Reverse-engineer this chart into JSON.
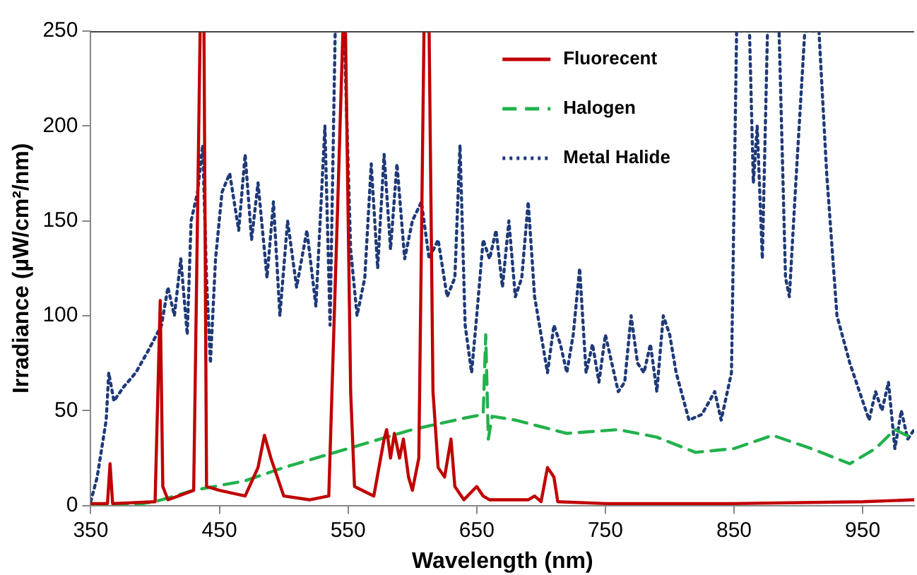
{
  "chart_data": {
    "type": "line",
    "xlabel": "Wavelength (nm)",
    "ylabel": "Irradiance (µW/cm²/nm)",
    "xlim": [
      350,
      990
    ],
    "ylim": [
      0,
      250
    ],
    "xticks": [
      350,
      450,
      550,
      650,
      750,
      850,
      950
    ],
    "yticks": [
      0,
      50,
      100,
      150,
      200,
      250
    ],
    "grid": false,
    "legend": "top",
    "marker": "none",
    "series": [
      {
        "name": "Fluorecent",
        "color": "#c00000",
        "line_style": "solid",
        "x": [
          350,
          363,
          365,
          367,
          400,
          404,
          406,
          410,
          430,
          435,
          438,
          440,
          450,
          470,
          480,
          485,
          490,
          500,
          520,
          535,
          542,
          546,
          548,
          552,
          555,
          570,
          578,
          580,
          583,
          586,
          590,
          593,
          597,
          600,
          605,
          609,
          613,
          616,
          620,
          625,
          630,
          633,
          640,
          650,
          655,
          660,
          690,
          695,
          700,
          705,
          710,
          713,
          750,
          850,
          950,
          990
        ],
        "values": [
          1,
          1,
          22,
          1,
          2,
          108,
          10,
          3,
          8,
          250,
          250,
          10,
          8,
          5,
          20,
          37,
          25,
          5,
          3,
          5,
          160,
          250,
          250,
          60,
          10,
          5,
          35,
          40,
          25,
          38,
          25,
          35,
          15,
          8,
          25,
          250,
          250,
          60,
          20,
          15,
          35,
          10,
          3,
          10,
          5,
          3,
          3,
          5,
          2,
          20,
          15,
          2,
          1,
          1,
          2,
          3
        ]
      },
      {
        "name": "Halogen",
        "color": "#22b14c",
        "line_style": "dashed",
        "x": [
          350,
          380,
          400,
          430,
          470,
          500,
          550,
          600,
          640,
          655,
          657,
          659,
          662,
          680,
          720,
          760,
          790,
          820,
          850,
          880,
          910,
          940,
          960,
          975,
          990
        ],
        "values": [
          0,
          0,
          2,
          8,
          13,
          20,
          30,
          40,
          46,
          48,
          90,
          35,
          47,
          45,
          38,
          40,
          36,
          28,
          30,
          37,
          30,
          22,
          30,
          40,
          35
        ]
      },
      {
        "name": "Metal Halide",
        "color": "#1f3a78",
        "line_style": "dotted",
        "x": [
          350,
          355,
          362,
          364,
          368,
          375,
          385,
          395,
          405,
          410,
          415,
          420,
          425,
          428,
          433,
          437,
          440,
          443,
          447,
          452,
          458,
          465,
          470,
          475,
          480,
          487,
          492,
          497,
          503,
          510,
          518,
          525,
          532,
          536,
          540,
          547,
          552,
          557,
          563,
          568,
          573,
          578,
          583,
          588,
          594,
          600,
          607,
          613,
          620,
          627,
          633,
          637,
          641,
          646,
          650,
          655,
          660,
          665,
          670,
          675,
          680,
          685,
          690,
          695,
          700,
          705,
          710,
          715,
          720,
          725,
          730,
          735,
          740,
          745,
          750,
          755,
          760,
          765,
          770,
          775,
          780,
          785,
          790,
          795,
          800,
          805,
          815,
          825,
          835,
          840,
          848,
          852,
          862,
          865,
          868,
          872,
          876,
          885,
          890,
          893,
          898,
          905,
          910,
          916,
          922,
          930,
          940,
          950,
          955,
          960,
          965,
          970,
          975,
          980,
          985,
          990
        ],
        "values": [
          2,
          15,
          45,
          70,
          55,
          62,
          70,
          82,
          95,
          115,
          100,
          130,
          90,
          150,
          165,
          190,
          120,
          75,
          130,
          165,
          175,
          145,
          185,
          140,
          170,
          120,
          160,
          100,
          150,
          115,
          145,
          105,
          200,
          95,
          250,
          250,
          135,
          100,
          120,
          180,
          125,
          185,
          135,
          180,
          130,
          150,
          160,
          130,
          140,
          110,
          120,
          190,
          95,
          70,
          100,
          140,
          130,
          145,
          115,
          150,
          110,
          120,
          160,
          110,
          90,
          70,
          95,
          85,
          70,
          90,
          125,
          70,
          85,
          65,
          90,
          75,
          60,
          65,
          100,
          75,
          70,
          85,
          60,
          100,
          90,
          70,
          45,
          48,
          60,
          45,
          70,
          250,
          250,
          170,
          200,
          130,
          250,
          250,
          120,
          110,
          170,
          250,
          250,
          250,
          175,
          100,
          75,
          55,
          45,
          60,
          50,
          65,
          30,
          50,
          35,
          40
        ]
      }
    ]
  }
}
